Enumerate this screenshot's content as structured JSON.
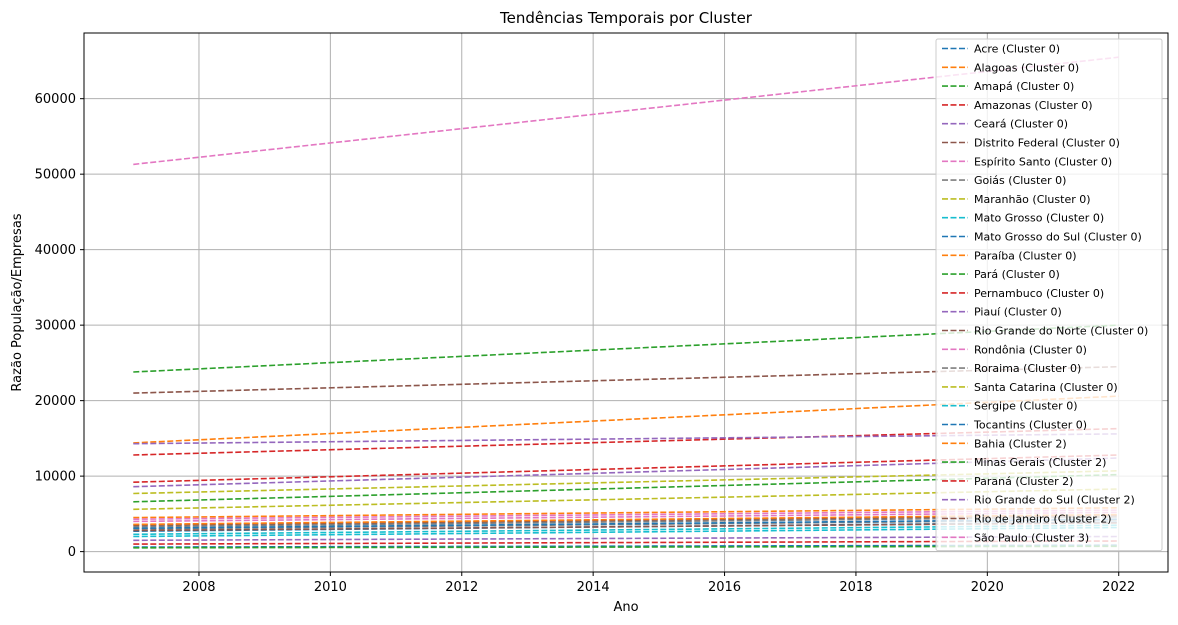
{
  "chart_data": {
    "type": "line",
    "title": "Tendências Temporais por Cluster",
    "xlabel": "Ano",
    "ylabel": "Razão População/Empresas",
    "xlim": [
      2006.25,
      2022.75
    ],
    "ylim": [
      -2700,
      68700
    ],
    "xticks": [
      2008,
      2010,
      2012,
      2014,
      2016,
      2018,
      2020,
      2022
    ],
    "yticks": [
      0,
      10000,
      20000,
      30000,
      40000,
      50000,
      60000
    ],
    "grid": true,
    "legend_position": "top-right",
    "line_style": "dashed",
    "x": [
      2007,
      2022
    ],
    "series": [
      {
        "name": "Acre (Cluster 0)",
        "color": "#1f77b4",
        "values": [
          600,
          850
        ]
      },
      {
        "name": "Alagoas (Cluster 0)",
        "color": "#ff7f0e",
        "values": [
          14400,
          20600
        ]
      },
      {
        "name": "Amapá (Cluster 0)",
        "color": "#2ca02c",
        "values": [
          23800,
          30000
        ]
      },
      {
        "name": "Amazonas (Cluster 0)",
        "color": "#d62728",
        "values": [
          12800,
          16300
        ]
      },
      {
        "name": "Ceará (Cluster 0)",
        "color": "#9467bd",
        "values": [
          8600,
          12400
        ]
      },
      {
        "name": "Distrito Federal (Cluster 0)",
        "color": "#8c564b",
        "values": [
          21000,
          24500
        ]
      },
      {
        "name": "Espírito Santo (Cluster 0)",
        "color": "#e377c2",
        "values": [
          4000,
          5200
        ]
      },
      {
        "name": "Goiás (Cluster 0)",
        "color": "#7f7f7f",
        "values": [
          3300,
          4600
        ]
      },
      {
        "name": "Maranhão (Cluster 0)",
        "color": "#bcbd22",
        "values": [
          5600,
          8300
        ]
      },
      {
        "name": "Mato Grosso (Cluster 0)",
        "color": "#17becf",
        "values": [
          2000,
          3200
        ]
      },
      {
        "name": "Mato Grosso do Sul (Cluster 0)",
        "color": "#1f77b4",
        "values": [
          2700,
          3900
        ]
      },
      {
        "name": "Paraíba (Cluster 0)",
        "color": "#ff7f0e",
        "values": [
          4500,
          5800
        ]
      },
      {
        "name": "Pará (Cluster 0)",
        "color": "#2ca02c",
        "values": [
          6600,
          10200
        ]
      },
      {
        "name": "Pernambuco (Cluster 0)",
        "color": "#d62728",
        "values": [
          9200,
          12800
        ]
      },
      {
        "name": "Piauí (Cluster 0)",
        "color": "#9467bd",
        "values": [
          14300,
          15600
        ]
      },
      {
        "name": "Rio Grande do Norte (Cluster 0)",
        "color": "#8c564b",
        "values": [
          3500,
          4800
        ]
      },
      {
        "name": "Rondônia (Cluster 0)",
        "color": "#e377c2",
        "values": [
          4300,
          5500
        ]
      },
      {
        "name": "Roraima (Cluster 0)",
        "color": "#7f7f7f",
        "values": [
          3000,
          4200
        ]
      },
      {
        "name": "Santa Catarina (Cluster 0)",
        "color": "#bcbd22",
        "values": [
          7700,
          10700
        ]
      },
      {
        "name": "Sergipe (Cluster 0)",
        "color": "#17becf",
        "values": [
          2300,
          3500
        ]
      },
      {
        "name": "Tocantins (Cluster 0)",
        "color": "#1f77b4",
        "values": [
          3100,
          4300
        ]
      },
      {
        "name": "Bahia (Cluster 2)",
        "color": "#ff7f0e",
        "values": [
          3600,
          4900
        ]
      },
      {
        "name": "Minas Gerais (Cluster 2)",
        "color": "#2ca02c",
        "values": [
          500,
          700
        ]
      },
      {
        "name": "Paraná (Cluster 2)",
        "color": "#d62728",
        "values": [
          1000,
          1400
        ]
      },
      {
        "name": "Rio Grande do Sul (Cluster 2)",
        "color": "#9467bd",
        "values": [
          1500,
          2000
        ]
      },
      {
        "name": "Rio de Janeiro (Cluster 2)",
        "color": "#8c564b",
        "values": [
          2800,
          3800
        ]
      },
      {
        "name": "São Paulo (Cluster 3)",
        "color": "#e377c2",
        "values": [
          51300,
          65500
        ]
      }
    ]
  }
}
